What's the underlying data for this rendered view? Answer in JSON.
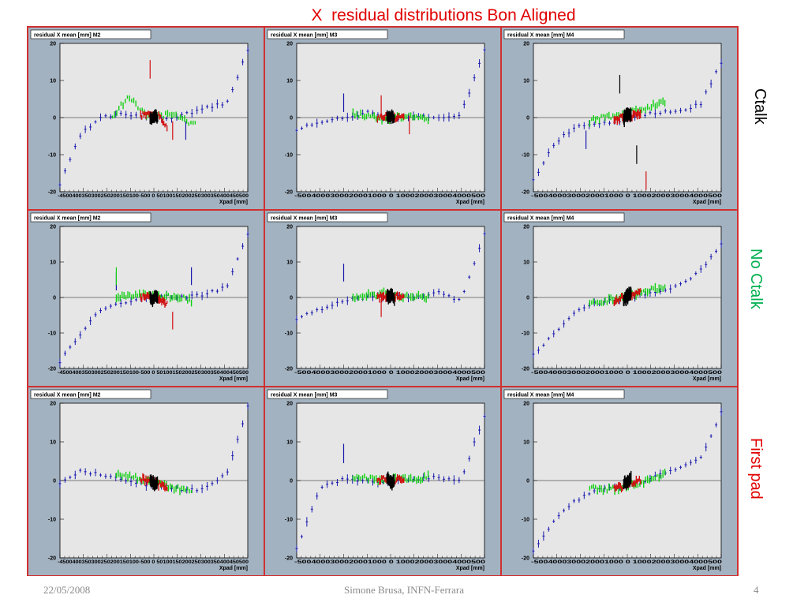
{
  "slide": {
    "title": "X  residual distributions Bon Aligned",
    "title_color": "#e00000"
  },
  "rows": [
    {
      "label": "Ctalk",
      "color": "#000000"
    },
    {
      "label": "No Ctalk",
      "color": "#00b050"
    },
    {
      "label": "First pad",
      "color": "#e00000"
    }
  ],
  "footer": {
    "date": "22/05/2008",
    "author": "Simone Brusa, INFN-Ferrara",
    "page": "4"
  },
  "colors": {
    "panel_bg": "#a3b2c0",
    "plot_bg": "#e6e6e6",
    "border": "#d03030",
    "region_colors": [
      "#1a1ab0",
      "#10d010",
      "#d01010",
      "#000000"
    ]
  },
  "chart_data": [
    {
      "type": "scatter",
      "panel": "Ctalk M2",
      "title": "residual X mean [mm] M2",
      "xlabel": "Xpad [mm]",
      "xtick_text": "-4500400350300250200150100-500 0 50100150200250300350400450500",
      "ylim": [
        -20,
        20
      ],
      "yticks": [
        20,
        10,
        0,
        -10,
        -20
      ],
      "series": [
        {
          "region": 1,
          "start": -0.5,
          "spread": 2.5,
          "ends": [
            -18,
            -4.5,
            0,
            1,
            0.5,
            -0.5,
            1,
            2.5,
            4,
            18
          ],
          "outliers": [
            [
              0.17,
              -3.5
            ]
          ]
        },
        {
          "region": 2,
          "start": -0.22,
          "spread": 2,
          "ends": [
            0,
            6,
            0.5,
            0.5,
            0.5,
            -2
          ],
          "outliers": []
        },
        {
          "region": 3,
          "start": -0.07,
          "spread": 2,
          "ends": [
            0.5,
            1.5,
            0.5,
            -2.5
          ],
          "outliers": [
            [
              -0.02,
              13
            ],
            [
              0.1,
              -3.5
            ]
          ]
        },
        {
          "region": 4,
          "start": -0.02,
          "spread": 3,
          "ends": [
            0,
            -0.5,
            0.5,
            0
          ],
          "outliers": []
        }
      ]
    },
    {
      "type": "scatter",
      "panel": "Ctalk M3",
      "title": "residual X mean [mm] M3",
      "xlabel": "Xpad [mm]",
      "xtick_text": "-5004000300020001000 0 1000200030004000500",
      "ylim": [
        -20,
        20
      ],
      "yticks": [
        20,
        10,
        0,
        -10,
        -20
      ],
      "series": [
        {
          "region": 1,
          "start": -0.5,
          "spread": 2.5,
          "ends": [
            -3.5,
            -1,
            0,
            1.5,
            -0.5,
            0.5,
            0,
            1,
            18
          ],
          "outliers": [
            [
              -0.25,
              4
            ]
          ]
        },
        {
          "region": 2,
          "start": -0.2,
          "spread": 2,
          "ends": [
            1,
            0.5,
            -0.5,
            0,
            0.5,
            -1
          ],
          "outliers": []
        },
        {
          "region": 3,
          "start": -0.07,
          "spread": 2,
          "ends": [
            0,
            0.5,
            0,
            0.5
          ],
          "outliers": [
            [
              -0.05,
              3.5
            ],
            [
              0.1,
              -2
            ]
          ]
        },
        {
          "region": 4,
          "start": -0.02,
          "spread": 3,
          "ends": [
            0.5,
            0,
            0.5,
            -0.5
          ],
          "outliers": []
        }
      ]
    },
    {
      "type": "scatter",
      "panel": "Ctalk M4",
      "title": "residual X mean [mm] M4",
      "xlabel": "Xpad [mm]",
      "xtick_text": "-5004000300020001000 0 1000200030004000500",
      "ylim": [
        -20,
        20
      ],
      "yticks": [
        20,
        10,
        0,
        -10,
        -20
      ],
      "series": [
        {
          "region": 1,
          "start": -0.5,
          "spread": 2.5,
          "ends": [
            -17,
            -7,
            -2.5,
            -1.5,
            -1,
            0.5,
            1.5,
            2,
            3.5,
            15
          ],
          "outliers": [
            [
              -0.22,
              -6
            ]
          ]
        },
        {
          "region": 2,
          "start": -0.2,
          "spread": 2,
          "ends": [
            -1,
            0,
            1,
            2,
            3,
            4
          ],
          "outliers": []
        },
        {
          "region": 3,
          "start": -0.07,
          "spread": 2.5,
          "ends": [
            -0.5,
            0,
            0.5,
            1
          ],
          "outliers": [
            [
              0.1,
              -17
            ]
          ]
        },
        {
          "region": 4,
          "start": -0.02,
          "spread": 3.5,
          "ends": [
            -0.5,
            0.5,
            1,
            0.5
          ],
          "outliers": [
            [
              -0.04,
              9
            ],
            [
              0.05,
              -10
            ]
          ]
        }
      ]
    },
    {
      "type": "scatter",
      "panel": "No Ctalk M2",
      "title": "residual X mean [mm] M2",
      "xlabel": "Xpad [mm]",
      "xtick_text": "-4500400350300250200150100-500 0 50100150200250300350400450500",
      "ylim": [
        -20,
        20
      ],
      "yticks": [
        20,
        10,
        0,
        -10,
        -20
      ],
      "series": [
        {
          "region": 1,
          "start": -0.5,
          "spread": 2.5,
          "ends": [
            -18,
            -10,
            -3,
            -1.5,
            0,
            0.5,
            0,
            1,
            3,
            18
          ],
          "outliers": [
            [
              0.2,
              6
            ],
            [
              -0.2,
              4.5
            ]
          ]
        },
        {
          "region": 2,
          "start": -0.2,
          "spread": 2.5,
          "ends": [
            0,
            0.5,
            1,
            0,
            0.5,
            -1
          ],
          "outliers": [
            [
              -0.2,
              6
            ]
          ]
        },
        {
          "region": 3,
          "start": -0.07,
          "spread": 2.5,
          "ends": [
            0,
            0.5,
            0,
            -1.5
          ],
          "outliers": [
            [
              0.1,
              -6.5
            ]
          ]
        },
        {
          "region": 4,
          "start": -0.02,
          "spread": 3.5,
          "ends": [
            0,
            -1,
            0.5,
            0
          ],
          "outliers": []
        }
      ]
    },
    {
      "type": "scatter",
      "panel": "No Ctalk M3",
      "title": "residual X mean [mm] M3",
      "xlabel": "Xpad [mm]",
      "xtick_text": "-5004000300020001000 0 1000200030004000500",
      "ylim": [
        -20,
        20
      ],
      "yticks": [
        20,
        10,
        0,
        -10,
        -20
      ],
      "series": [
        {
          "region": 1,
          "start": -0.5,
          "spread": 2.5,
          "ends": [
            -6,
            -3.5,
            -1,
            0,
            0.5,
            0,
            1.5,
            -1,
            18
          ],
          "outliers": [
            [
              -0.25,
              7
            ]
          ]
        },
        {
          "region": 2,
          "start": -0.2,
          "spread": 2.5,
          "ends": [
            0,
            0.5,
            1,
            0,
            0.5,
            0
          ],
          "outliers": []
        },
        {
          "region": 3,
          "start": -0.07,
          "spread": 2.5,
          "ends": [
            0,
            0.5,
            0.5,
            0
          ],
          "outliers": [
            [
              -0.05,
              -3
            ]
          ]
        },
        {
          "region": 4,
          "start": -0.02,
          "spread": 3.5,
          "ends": [
            0.5,
            0,
            0.5,
            -0.5
          ],
          "outliers": []
        }
      ]
    },
    {
      "type": "scatter",
      "panel": "No Ctalk M4",
      "title": "residual X mean [mm] M4",
      "xlabel": "Xpad [mm]",
      "xtick_text": "-5004000300020001000 0 1000200030004000500",
      "ylim": [
        -20,
        20
      ],
      "yticks": [
        20,
        10,
        0,
        -10,
        -20
      ],
      "series": [
        {
          "region": 1,
          "start": -0.5,
          "spread": 2.5,
          "ends": [
            -16,
            -11,
            -5,
            -2,
            -1,
            0,
            1,
            2,
            4,
            8,
            15
          ],
          "outliers": []
        },
        {
          "region": 2,
          "start": -0.2,
          "spread": 2.5,
          "ends": [
            -2,
            -1,
            0,
            1,
            2,
            3
          ],
          "outliers": []
        },
        {
          "region": 3,
          "start": -0.07,
          "spread": 2.5,
          "ends": [
            -1,
            0,
            1,
            1.5
          ],
          "outliers": []
        },
        {
          "region": 4,
          "start": -0.02,
          "spread": 4,
          "ends": [
            -1,
            0,
            1,
            1
          ],
          "outliers": []
        }
      ]
    },
    {
      "type": "scatter",
      "panel": "First pad M2",
      "title": "residual X mean [mm] M2",
      "xlabel": "Xpad [mm]",
      "xtick_text": "-4500400350300250200150100-500 0 50100150200250300350400450500",
      "ylim": [
        -20,
        20
      ],
      "yticks": [
        20,
        10,
        0,
        -10,
        -20
      ],
      "series": [
        {
          "region": 1,
          "start": -0.5,
          "spread": 2.5,
          "ends": [
            -1,
            2.5,
            1.5,
            0.5,
            -1,
            -1.5,
            -2.5,
            -2,
            2,
            19
          ],
          "outliers": []
        },
        {
          "region": 2,
          "start": -0.2,
          "spread": 2,
          "ends": [
            2,
            1,
            0,
            -1,
            -2,
            -2.5
          ],
          "outliers": []
        },
        {
          "region": 3,
          "start": -0.07,
          "spread": 2,
          "ends": [
            0.5,
            0,
            -1,
            -1.5
          ],
          "outliers": []
        },
        {
          "region": 4,
          "start": -0.02,
          "spread": 3,
          "ends": [
            0,
            -0.5,
            -1,
            -0.5
          ],
          "outliers": []
        }
      ]
    },
    {
      "type": "scatter",
      "panel": "First pad M3",
      "title": "residual X mean [mm] M3",
      "xlabel": "Xpad [mm]",
      "xtick_text": "-5004000300020001000 0 1000200030004000500",
      "ylim": [
        -20,
        20
      ],
      "yticks": [
        20,
        10,
        0,
        -10,
        -20
      ],
      "series": [
        {
          "region": 1,
          "start": -0.5,
          "spread": 2.5,
          "ends": [
            -18,
            -2,
            0.5,
            -0.5,
            0,
            0.5,
            1,
            0,
            17
          ],
          "outliers": [
            [
              -0.25,
              7
            ]
          ]
        },
        {
          "region": 2,
          "start": -0.2,
          "spread": 2,
          "ends": [
            1,
            0.5,
            0,
            0.5,
            0,
            1
          ],
          "outliers": []
        },
        {
          "region": 3,
          "start": -0.07,
          "spread": 2,
          "ends": [
            0,
            0.5,
            0,
            0.5
          ],
          "outliers": []
        },
        {
          "region": 4,
          "start": -0.02,
          "spread": 3,
          "ends": [
            0.5,
            0,
            -0.5,
            0
          ],
          "outliers": []
        }
      ]
    },
    {
      "type": "scatter",
      "panel": "First pad M4",
      "title": "residual X mean [mm] M4",
      "xlabel": "Xpad [mm]",
      "xtick_text": "-5004000300020001000 0 1000200030004000500",
      "ylim": [
        -20,
        20
      ],
      "yticks": [
        20,
        10,
        0,
        -10,
        -20
      ],
      "series": [
        {
          "region": 1,
          "start": -0.5,
          "spread": 2.5,
          "ends": [
            -18,
            -11,
            -6,
            -3,
            -2,
            -1.5,
            0,
            2,
            4,
            6,
            18
          ],
          "outliers": []
        },
        {
          "region": 2,
          "start": -0.2,
          "spread": 2,
          "ends": [
            -2,
            -2.5,
            -2,
            -1,
            0,
            2
          ],
          "outliers": []
        },
        {
          "region": 3,
          "start": -0.07,
          "spread": 2,
          "ends": [
            -2,
            -1.5,
            -0.5,
            0
          ],
          "outliers": []
        },
        {
          "region": 4,
          "start": -0.02,
          "spread": 3,
          "ends": [
            -1,
            -0.5,
            0,
            0.5
          ],
          "outliers": []
        }
      ]
    }
  ]
}
